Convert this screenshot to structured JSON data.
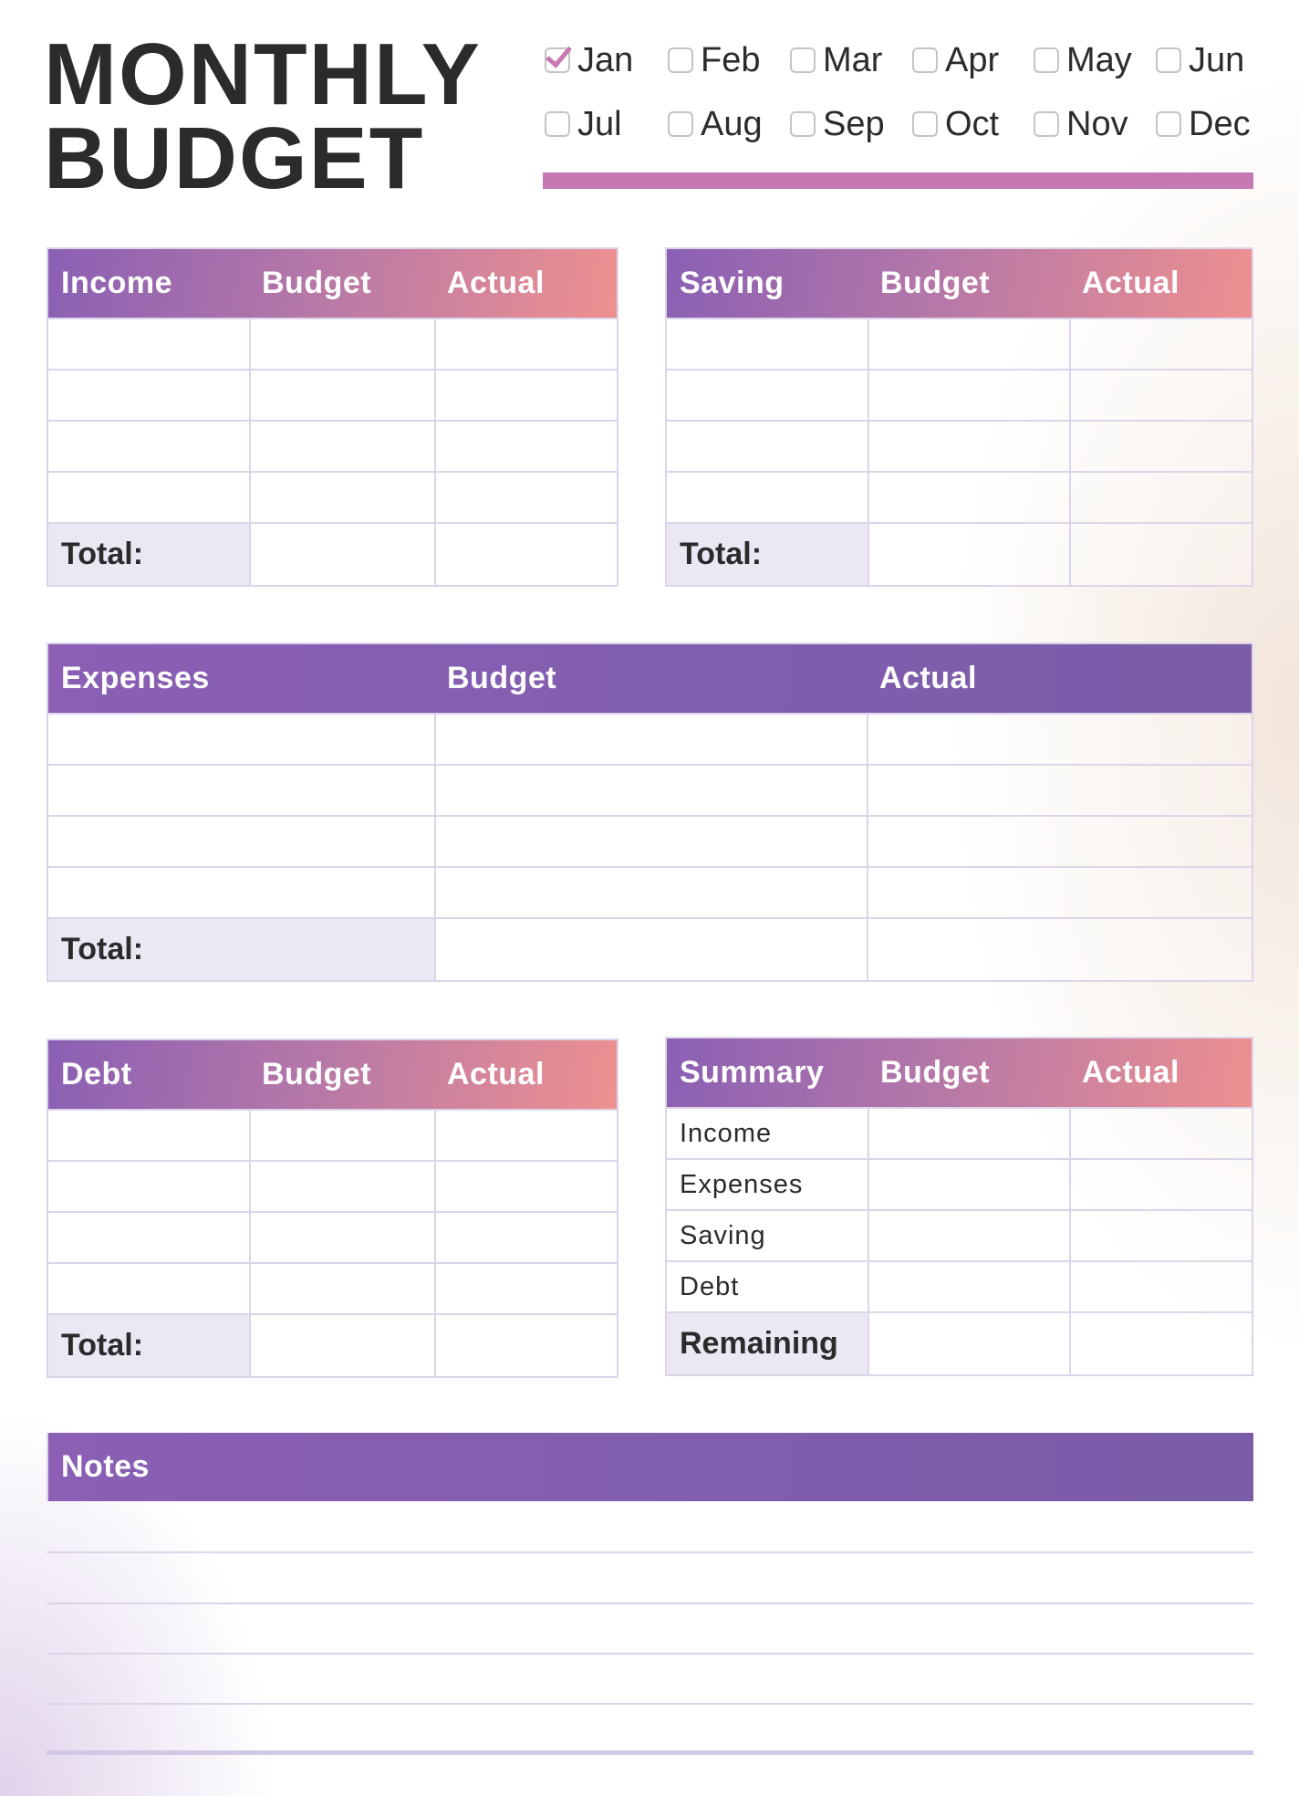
{
  "title": {
    "line1": "MONTHLY",
    "line2": "BUDGET"
  },
  "months": [
    {
      "label": "Jan",
      "checked": true
    },
    {
      "label": "Feb",
      "checked": false
    },
    {
      "label": "Mar",
      "checked": false
    },
    {
      "label": "Apr",
      "checked": false
    },
    {
      "label": "May",
      "checked": false
    },
    {
      "label": "Jun",
      "checked": false
    },
    {
      "label": "Jul",
      "checked": false
    },
    {
      "label": "Aug",
      "checked": false
    },
    {
      "label": "Sep",
      "checked": false
    },
    {
      "label": "Oct",
      "checked": false
    },
    {
      "label": "Nov",
      "checked": false
    },
    {
      "label": "Dec",
      "checked": false
    }
  ],
  "colors": {
    "accent": "#c578b2",
    "purple": "#8a5fb4",
    "coral": "#ee9090",
    "grid": "#dcd4ea"
  },
  "income": {
    "headers": [
      "Income",
      "Budget",
      "Actual"
    ],
    "total_label": "Total:"
  },
  "saving": {
    "headers": [
      "Saving",
      "Budget",
      "Actual"
    ],
    "total_label": "Total:"
  },
  "expenses": {
    "headers": [
      "Expenses",
      "Budget",
      "Actual"
    ],
    "total_label": "Total:"
  },
  "debt": {
    "headers": [
      "Debt",
      "Budget",
      "Actual"
    ],
    "total_label": "Total:"
  },
  "summary": {
    "headers": [
      "Summary",
      "Budget",
      "Actual"
    ],
    "rows": [
      "Income",
      "Expenses",
      "Saving",
      "Debt"
    ],
    "remaining_label": "Remaining"
  },
  "notes": {
    "header": "Notes"
  }
}
